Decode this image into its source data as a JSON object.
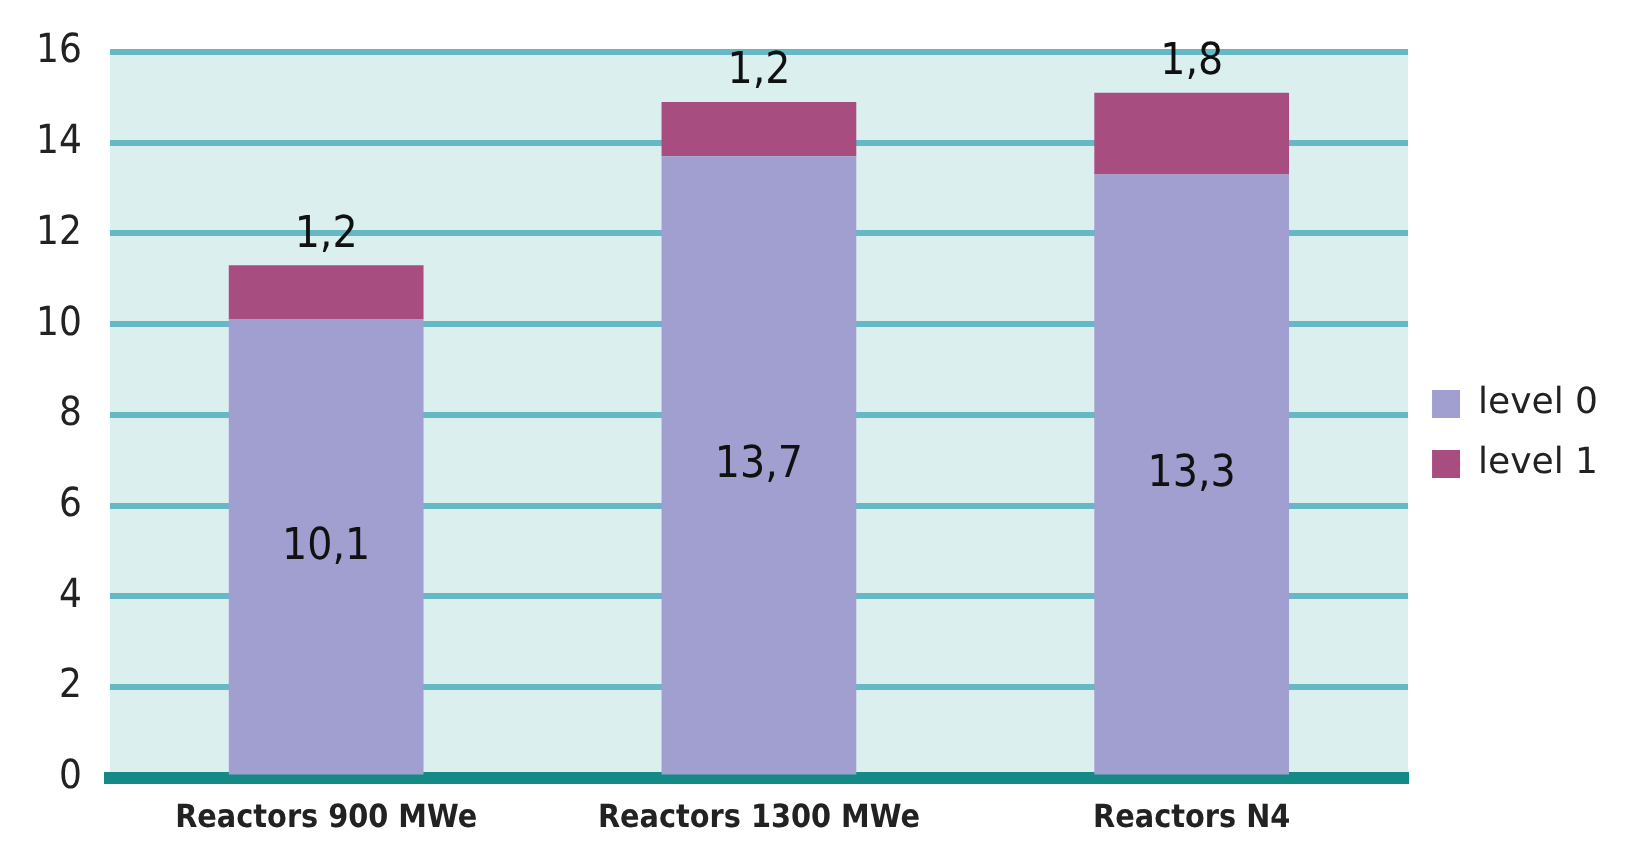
{
  "chart_data": {
    "type": "bar",
    "stacked": true,
    "categories": [
      "Reactors 900 MWe",
      "Reactors 1300 MWe",
      "Reactors N4"
    ],
    "series": [
      {
        "name": "level 0",
        "color": "#a09fd0",
        "values": [
          10.1,
          13.7,
          13.3
        ],
        "value_labels": [
          "10,1",
          "13,7",
          "13,3"
        ]
      },
      {
        "name": "level 1",
        "color": "#a84d80",
        "values": [
          1.2,
          1.2,
          1.8
        ],
        "value_labels": [
          "1,2",
          "1,2",
          "1,8"
        ]
      }
    ],
    "ylim": [
      0,
      16
    ],
    "yticks": [
      0,
      2,
      4,
      6,
      8,
      10,
      12,
      14,
      16
    ],
    "grid": "y",
    "legend": "right"
  }
}
